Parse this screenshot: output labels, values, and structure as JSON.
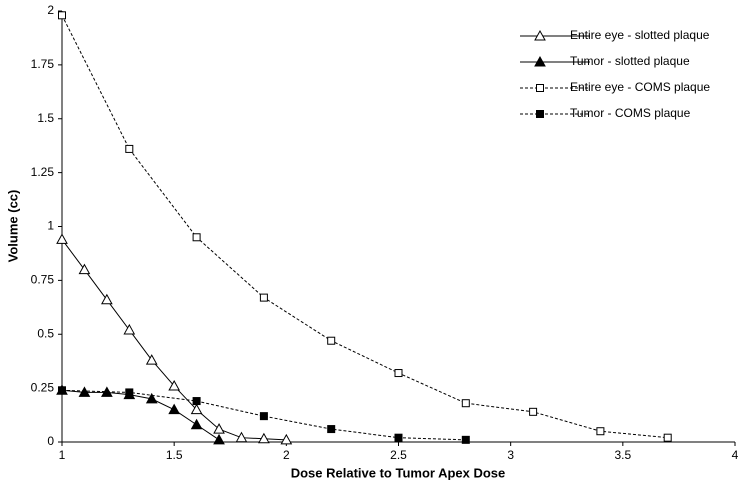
{
  "chart_data": {
    "type": "line",
    "x_label": "Dose Relative to Tumor Apex Dose",
    "y_label": "Volume (cc)",
    "xlim": [
      1,
      4
    ],
    "xticks": [
      1,
      1.5,
      2,
      2.5,
      3,
      3.5,
      4
    ],
    "ylim": [
      0,
      2
    ],
    "yticks": [
      0,
      0.25,
      0.5,
      0.75,
      1,
      1.25,
      1.5,
      1.75,
      2
    ],
    "grid": false,
    "legend": "upper right",
    "series": [
      {
        "name": "Entire eye - slotted plaque",
        "color": "#000000",
        "marker": "triangle",
        "filled": false,
        "dashed": false,
        "x": [
          1,
          1.1,
          1.2,
          1.3,
          1.4,
          1.5,
          1.6,
          1.7,
          1.8,
          1.9,
          2.0
        ],
        "values": [
          0.94,
          0.8,
          0.66,
          0.52,
          0.38,
          0.26,
          0.15,
          0.06,
          0.02,
          0.015,
          0.01
        ]
      },
      {
        "name": "Tumor - slotted plaque",
        "color": "#000000",
        "marker": "triangle",
        "filled": true,
        "dashed": false,
        "x": [
          1,
          1.1,
          1.2,
          1.3,
          1.4,
          1.5,
          1.6,
          1.7
        ],
        "values": [
          0.24,
          0.23,
          0.23,
          0.22,
          0.2,
          0.15,
          0.08,
          0.01
        ]
      },
      {
        "name": "Entire eye - COMS plaque",
        "color": "#000000",
        "marker": "square",
        "filled": false,
        "dashed": true,
        "x": [
          1,
          1.3,
          1.6,
          1.9,
          2.2,
          2.5,
          2.8,
          3.1,
          3.4,
          3.7
        ],
        "values": [
          1.98,
          1.36,
          0.95,
          0.67,
          0.47,
          0.32,
          0.18,
          0.14,
          0.05,
          0.02
        ]
      },
      {
        "name": "Tumor - COMS plaque",
        "color": "#000000",
        "marker": "square",
        "filled": true,
        "dashed": true,
        "x": [
          1,
          1.3,
          1.6,
          1.9,
          2.2,
          2.5,
          2.8
        ],
        "values": [
          0.24,
          0.23,
          0.19,
          0.12,
          0.06,
          0.02,
          0.01
        ]
      }
    ]
  }
}
